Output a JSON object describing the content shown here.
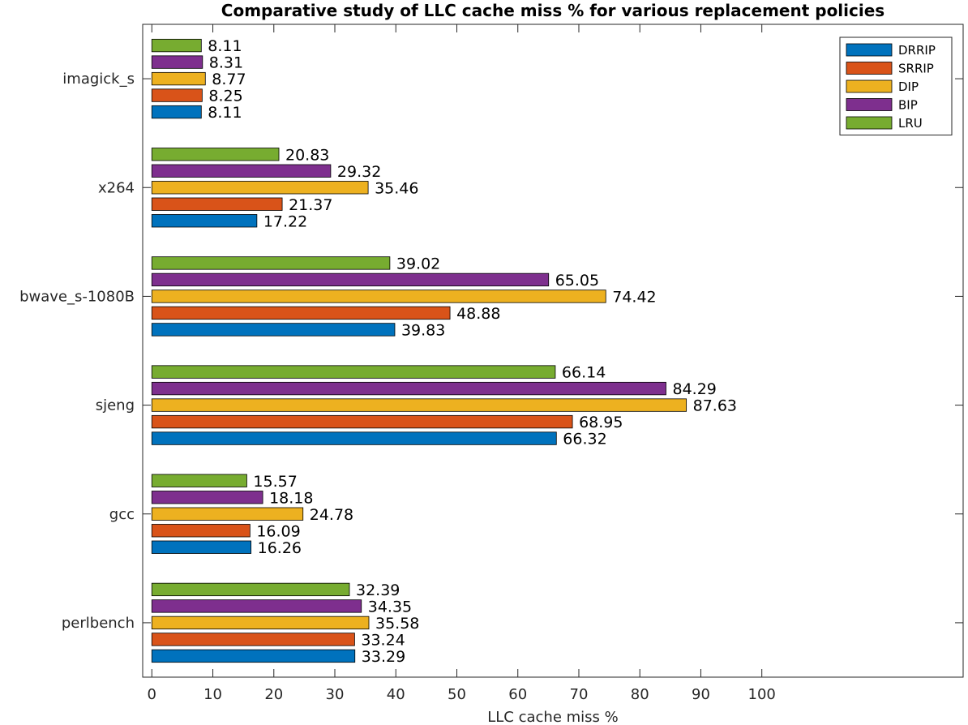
{
  "chart_data": {
    "type": "bar",
    "orientation": "horizontal",
    "title": "Comparative study of LLC cache miss % for various replacement policies",
    "xlabel": "LLC cache miss %",
    "ylabel": "",
    "xlim": [
      -1.5,
      133
    ],
    "xticks": [
      0,
      10,
      20,
      30,
      40,
      50,
      60,
      70,
      80,
      90,
      100
    ],
    "grid": false,
    "legend_position": "top-right",
    "categories": [
      "perlbench",
      "gcc",
      "sjeng",
      "bwave_s-1080B",
      "x264",
      "imagick_s"
    ],
    "series": [
      {
        "name": "DRRIP",
        "color": "#0072BD",
        "values": [
          33.29,
          16.26,
          66.32,
          39.83,
          17.22,
          8.11
        ]
      },
      {
        "name": "SRRIP",
        "color": "#D95319",
        "values": [
          33.24,
          16.09,
          68.95,
          48.88,
          21.37,
          8.25
        ]
      },
      {
        "name": "DIP",
        "color": "#EDB120",
        "values": [
          35.58,
          24.78,
          87.63,
          74.42,
          35.46,
          8.77
        ]
      },
      {
        "name": "BIP",
        "color": "#7E2F8E",
        "values": [
          34.35,
          18.18,
          84.29,
          65.05,
          29.32,
          8.31
        ]
      },
      {
        "name": "LRU",
        "color": "#77AC30",
        "values": [
          32.39,
          15.57,
          66.14,
          39.02,
          20.83,
          8.11
        ]
      }
    ]
  }
}
